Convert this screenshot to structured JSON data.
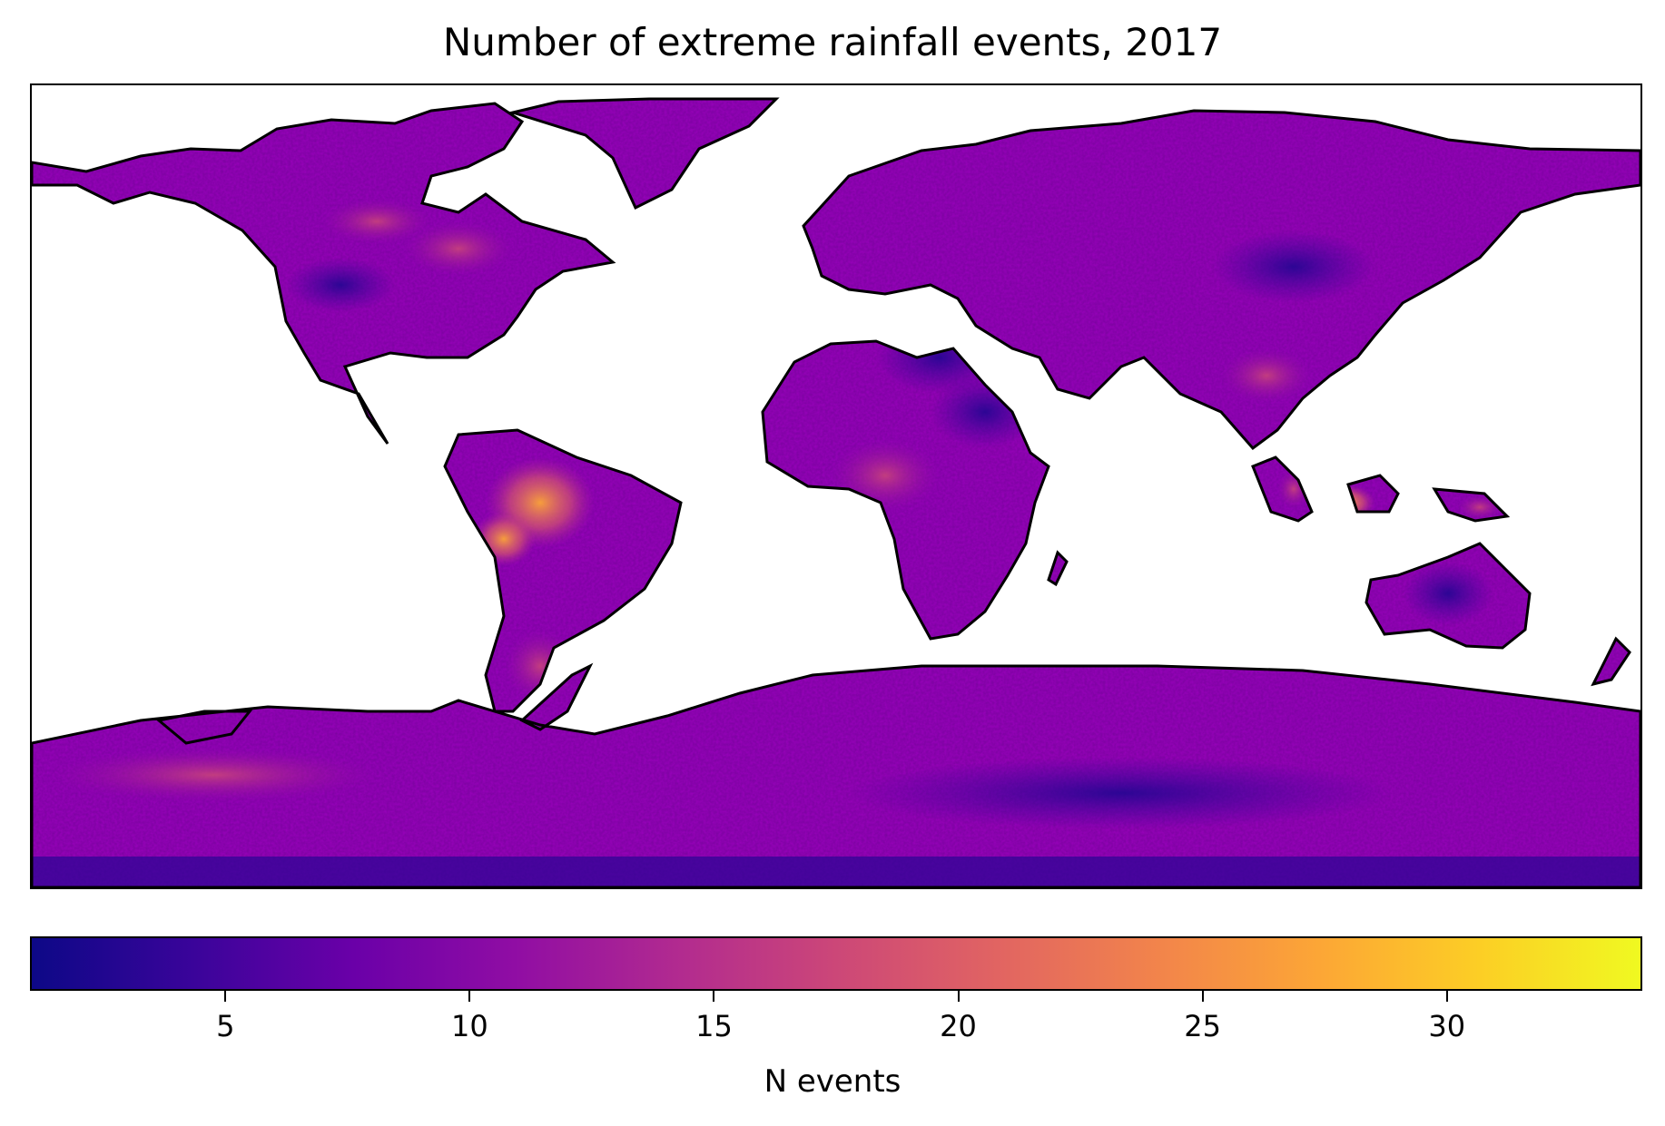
{
  "map": {
    "title": "Number of extreme rainfall events, 2017",
    "colormap": "plasma",
    "colormap_stops": [
      "#0d0887",
      "#3a049a",
      "#6a00a8",
      "#900da4",
      "#b12a90",
      "#cc4778",
      "#e16462",
      "#f2844b",
      "#fca636",
      "#fcce25",
      "#f0f921"
    ],
    "ocean_color": "#ffffff",
    "coastline_color": "#000000"
  },
  "colorbar": {
    "label": "N events",
    "vmin": 1,
    "vmax": 34,
    "ticks": [
      "5",
      "10",
      "15",
      "20",
      "25",
      "30"
    ]
  }
}
